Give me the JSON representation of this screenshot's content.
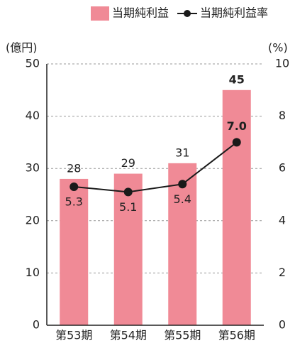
{
  "chart_data": {
    "type": "bar",
    "y_label": "(億円)",
    "y2_label": "(%)",
    "categories": [
      "第53期",
      "第54期",
      "第55期",
      "第56期"
    ],
    "series": [
      {
        "name": "当期純利益",
        "type": "bar",
        "color": "#f08a96",
        "values": [
          28,
          29,
          31,
          45
        ]
      },
      {
        "name": "当期純利益率",
        "type": "line",
        "axis": "y2",
        "color": "#1a1a1a",
        "values": [
          5.3,
          5.1,
          5.4,
          7.0
        ],
        "value_labels": [
          "5.3",
          "5.1",
          "5.4",
          "7.0"
        ]
      }
    ],
    "ylim": [
      0,
      50
    ],
    "yticks": [
      0,
      10,
      20,
      30,
      40,
      50
    ],
    "y2lim": [
      0,
      10
    ],
    "y2ticks": [
      0,
      2,
      4,
      6,
      8,
      10
    ],
    "grid": true,
    "legend": "top-right"
  }
}
